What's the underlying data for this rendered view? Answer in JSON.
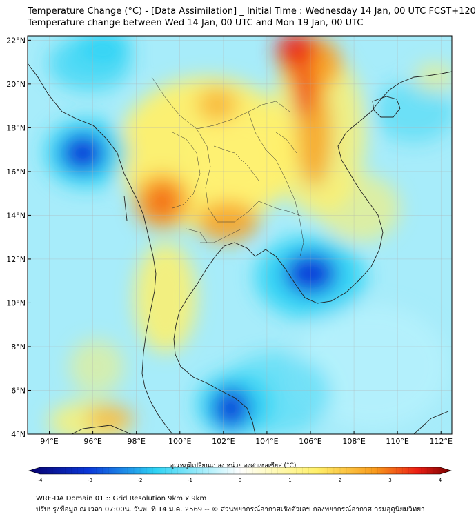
{
  "header": {
    "title": "Temperature Change (°C) - [Data Assimilation] _ Initial Time : Wednesday 14 Jan, 00 UTC FCST+120",
    "subtitle": "Temperature change between Wed 14 Jan, 00 UTC and Mon 19 Jan, 00 UTC"
  },
  "map": {
    "lat_labels": [
      "22°N",
      "20°N",
      "18°N",
      "16°N",
      "14°N",
      "12°N",
      "10°N",
      "8°N",
      "6°N",
      "4°N"
    ],
    "lon_labels": [
      "94°E",
      "96°E",
      "98°E",
      "100°E",
      "102°E",
      "104°E",
      "106°E",
      "108°E",
      "110°E",
      "112°E"
    ],
    "lat_range": [
      4,
      22.2
    ],
    "lon_range": [
      93,
      112.5
    ],
    "grid": true
  },
  "colorbar": {
    "title": "อุณหภูมิเปลี่ยนแปลง หน่วย องศาเซลเซียส (°C)",
    "ticks": [
      "-4",
      "-3",
      "-2",
      "-1",
      "0",
      "1",
      "2",
      "3",
      "4"
    ],
    "range": [
      -4,
      4
    ],
    "colors": {
      "dark_blue": "#08006e",
      "blue": "#0a37d8",
      "cyan": "#2fd3f4",
      "light_cyan": "#b6f1fc",
      "white": "#ffffff",
      "yellow": "#fff06a",
      "orange": "#f89a1c",
      "red": "#ec1e14",
      "dark_red": "#760000"
    }
  },
  "footer": {
    "line1": "WRF-DA Domain 01 :: Grid Resolution 9km x 9km",
    "line2": "ปรับปรุงข้อมูล ณ เวลา 07:00น. วันพ. ที่ 14 ม.ค. 2569 -- © ส่วนพยากรณ์อากาศเชิงตัวเลข กองพยากรณ์อากาศ กรมอุตุนิยมวิทยา"
  }
}
